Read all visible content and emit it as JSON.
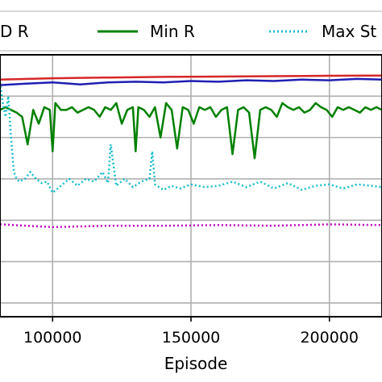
{
  "chart_data": {
    "type": "line",
    "xlabel": "Episode",
    "xlim": [
      81000,
      219000
    ],
    "ylim": [
      -1.0,
      0.9
    ],
    "grid": true,
    "legend_placement": "top",
    "x_ticks": [
      {
        "value": 100000,
        "label": "100000"
      },
      {
        "value": 150000,
        "label": "150000"
      },
      {
        "value": 200000,
        "label": "200000"
      }
    ],
    "y_gridlines": [
      -0.9,
      -0.6,
      -0.3,
      0.0,
      0.3,
      0.6
    ],
    "legend": [
      {
        "label": "D R",
        "color": "#1f1fb4",
        "style": "solid"
      },
      {
        "label": "Min R",
        "color": "#008000",
        "style": "solid"
      },
      {
        "label": "Max St",
        "color": "#17becf",
        "style": "dotted"
      }
    ],
    "series": [
      {
        "color": "#d62728",
        "style": "solid",
        "width": 2.5,
        "x": [
          81000,
          100000,
          120000,
          140000,
          160000,
          180000,
          200000,
          219000
        ],
        "y": [
          0.72,
          0.73,
          0.735,
          0.74,
          0.742,
          0.745,
          0.748,
          0.75
        ]
      },
      {
        "color": "#1f1fb4",
        "style": "solid",
        "width": 2.5,
        "x": [
          81000,
          90000,
          100000,
          110000,
          120000,
          130000,
          140000,
          150000,
          160000,
          170000,
          180000,
          190000,
          200000,
          210000,
          219000
        ],
        "y": [
          0.68,
          0.69,
          0.7,
          0.685,
          0.7,
          0.705,
          0.7,
          0.71,
          0.705,
          0.715,
          0.71,
          0.72,
          0.715,
          0.725,
          0.72
        ]
      },
      {
        "color": "#008000",
        "style": "solid",
        "width": 2.5,
        "x": [
          81000,
          83000,
          85000,
          87000,
          89000,
          91000,
          93000,
          95000,
          97000,
          99000,
          100000,
          101000,
          103000,
          105000,
          107000,
          109000,
          111000,
          113000,
          115000,
          117000,
          119000,
          121000,
          123000,
          125000,
          127000,
          129000,
          130000,
          131000,
          133000,
          135000,
          137000,
          139000,
          141000,
          143000,
          145000,
          147000,
          149000,
          151000,
          153000,
          155000,
          157000,
          159000,
          161000,
          163000,
          165000,
          167000,
          169000,
          171000,
          173000,
          175000,
          177000,
          179000,
          181000,
          183000,
          185000,
          187000,
          189000,
          191000,
          193000,
          195000,
          197000,
          199000,
          201000,
          203000,
          205000,
          207000,
          209000,
          211000,
          213000,
          215000,
          217000,
          219000
        ],
        "y": [
          0.5,
          0.52,
          0.5,
          0.48,
          0.45,
          0.25,
          0.5,
          0.4,
          0.52,
          0.5,
          0.2,
          0.55,
          0.5,
          0.5,
          0.52,
          0.48,
          0.5,
          0.52,
          0.5,
          0.45,
          0.52,
          0.5,
          0.55,
          0.4,
          0.5,
          0.52,
          0.2,
          0.52,
          0.5,
          0.45,
          0.52,
          0.3,
          0.55,
          0.5,
          0.22,
          0.52,
          0.5,
          0.4,
          0.52,
          0.5,
          0.52,
          0.45,
          0.5,
          0.52,
          0.18,
          0.5,
          0.52,
          0.48,
          0.15,
          0.5,
          0.52,
          0.5,
          0.45,
          0.55,
          0.52,
          0.5,
          0.52,
          0.48,
          0.5,
          0.55,
          0.52,
          0.5,
          0.45,
          0.52,
          0.5,
          0.52,
          0.5,
          0.48,
          0.52,
          0.5,
          0.52,
          0.5
        ]
      },
      {
        "color": "#17becf",
        "style": "dotted",
        "width": 2.5,
        "x": [
          81000,
          82000,
          83000,
          84000,
          85000,
          86000,
          87000,
          88000,
          90000,
          92000,
          94000,
          96000,
          98000,
          100000,
          103000,
          106000,
          109000,
          112000,
          115000,
          118000,
          120000,
          121000,
          123000,
          126000,
          129000,
          132000,
          135000,
          136000,
          137000,
          140000,
          143000,
          146000,
          150000,
          155000,
          160000,
          165000,
          170000,
          175000,
          180000,
          185000,
          190000,
          195000,
          200000,
          205000,
          210000,
          215000,
          219000
        ],
        "y": [
          0.7,
          0.55,
          0.45,
          0.6,
          0.3,
          0.05,
          0.0,
          -0.02,
          0.0,
          0.05,
          0.0,
          -0.03,
          -0.02,
          -0.1,
          -0.05,
          0.0,
          -0.05,
          0.0,
          -0.02,
          0.05,
          -0.03,
          0.25,
          -0.05,
          0.0,
          -0.06,
          -0.02,
          0.0,
          0.2,
          -0.04,
          -0.08,
          -0.05,
          -0.07,
          -0.04,
          -0.06,
          -0.05,
          -0.02,
          -0.06,
          -0.02,
          -0.07,
          -0.03,
          -0.08,
          -0.05,
          -0.04,
          -0.07,
          -0.04,
          -0.05,
          -0.06
        ]
      },
      {
        "color": "#bf00bf",
        "style": "dotted",
        "width": 2.5,
        "x": [
          81000,
          100000,
          120000,
          140000,
          160000,
          180000,
          200000,
          219000
        ],
        "y": [
          -0.33,
          -0.35,
          -0.34,
          -0.34,
          -0.335,
          -0.34,
          -0.33,
          -0.335
        ]
      }
    ]
  }
}
